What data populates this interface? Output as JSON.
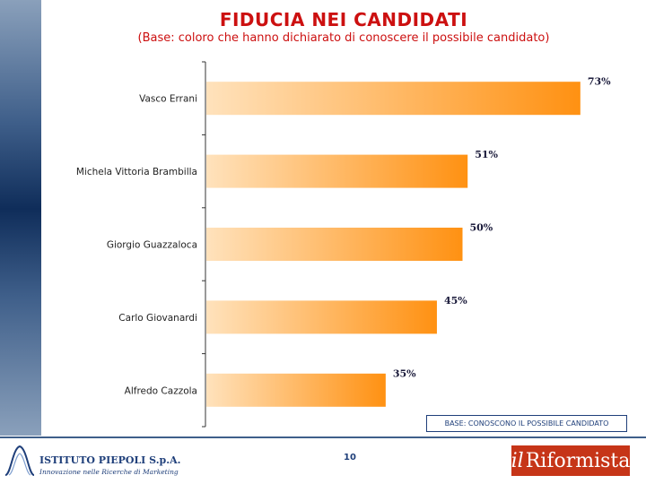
{
  "chart_data": {
    "type": "bar",
    "orientation": "horizontal",
    "title": "FIDUCIA NEI CANDIDATI",
    "subtitle": "(Base: coloro che hanno dichiarato di conoscere il possibile candidato)",
    "categories": [
      "Vasco Errani",
      "Michela Vittoria Brambilla",
      "Giorgio Guazzaloca",
      "Carlo Giovanardi",
      "Alfredo Cazzola"
    ],
    "values": [
      73,
      51,
      50,
      45,
      35
    ],
    "value_labels": [
      "73%",
      "51%",
      "50%",
      "45%",
      "35%"
    ],
    "unit": "%",
    "xlim": [
      0,
      100
    ],
    "grid": false,
    "legend": "none",
    "colors": {
      "bar_start": "#ffe2bc",
      "bar_end": "#ff9112"
    }
  },
  "base_note": "BASE: CONOSCONO IL POSSIBILE CANDIDATO",
  "page_number": "10",
  "footer": {
    "left_logo_name": "ISTITUTO PIEPOLI S.p.A.",
    "left_logo_tagline": "Innovazione nelle Ricerche di Marketing",
    "right_logo_il": "il",
    "right_logo_word": "Riformista"
  }
}
